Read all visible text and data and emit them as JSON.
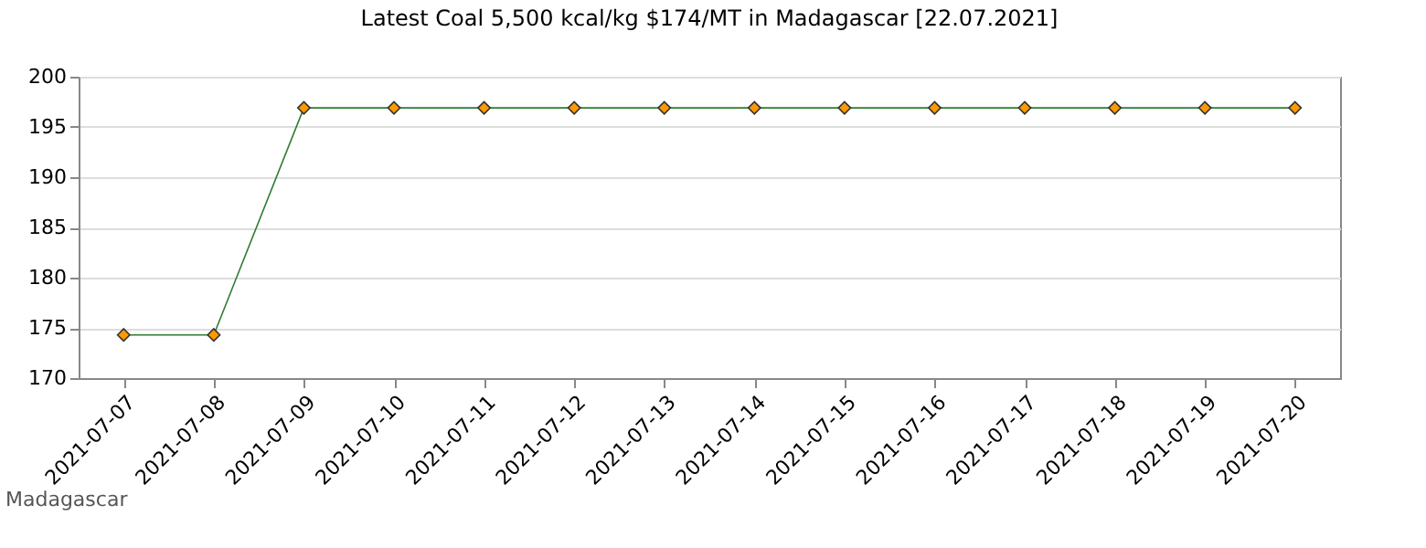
{
  "chart_data": {
    "type": "line",
    "title": "Latest Coal 5,500 kcal/kg $174/MT in Madagascar [22.07.2021]",
    "categories": [
      "2021-07-07",
      "2021-07-08",
      "2021-07-09",
      "2021-07-10",
      "2021-07-11",
      "2021-07-12",
      "2021-07-13",
      "2021-07-14",
      "2021-07-15",
      "2021-07-16",
      "2021-07-17",
      "2021-07-18",
      "2021-07-19",
      "2021-07-20"
    ],
    "series": [
      {
        "color": "#2e7d32",
        "values": [
          174.3,
          174.3,
          196.9,
          196.9,
          196.9,
          196.9,
          196.9,
          196.9,
          196.9,
          196.9,
          196.9,
          196.9,
          196.9,
          196.9
        ]
      }
    ],
    "ylim": [
      170,
      200
    ],
    "yticks": [
      170,
      175,
      180,
      185,
      190,
      195,
      200
    ],
    "grid": "y",
    "marker": "diamond",
    "line_style": "solid",
    "annotations": [
      "Madagascar"
    ]
  }
}
